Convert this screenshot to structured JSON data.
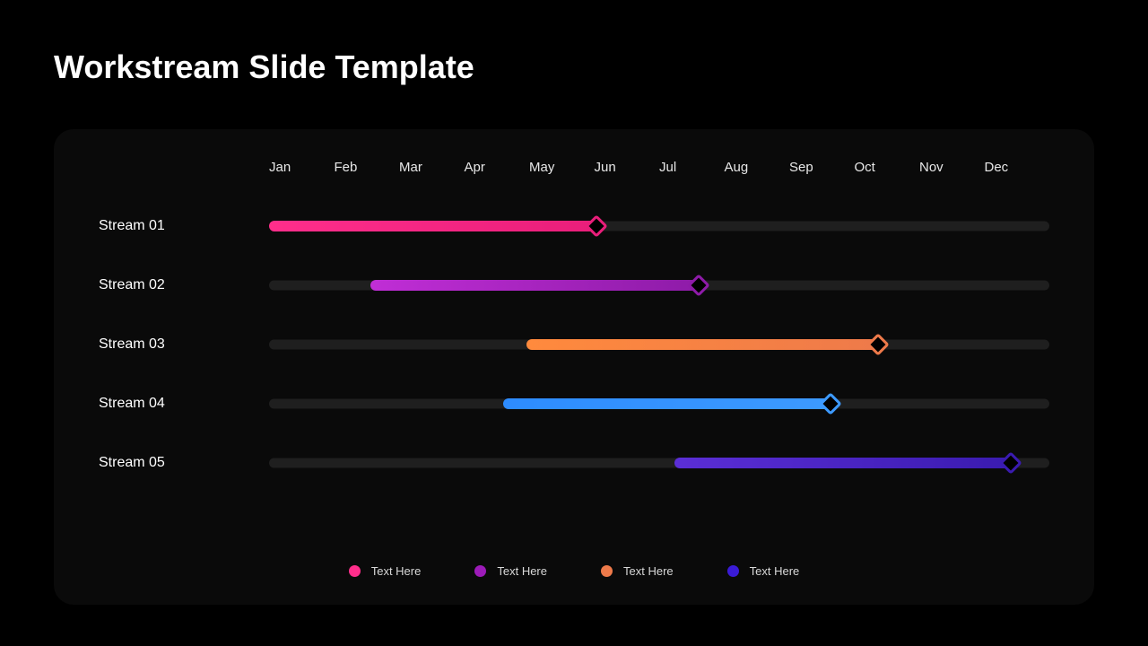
{
  "title": "Workstream Slide Template",
  "background_color": "#000000",
  "panel_background": "#0a0a0a",
  "track_background": "#1f1f1f",
  "text_color": "#ffffff",
  "title_fontsize": 36,
  "label_fontsize": 16,
  "month_fontsize": 15,
  "legend_fontsize": 13,
  "months": [
    "Jan",
    "Feb",
    "Mar",
    "Apr",
    "May",
    "Jun",
    "Jul",
    "Aug",
    "Sep",
    "Oct",
    "Nov",
    "Dec"
  ],
  "streams": [
    {
      "label": "Stream 01",
      "start_pct": 0,
      "end_pct": 42,
      "gradient_from": "#ff2e8b",
      "gradient_to": "#e91e7a",
      "diamond_color": "#e91e7a"
    },
    {
      "label": "Stream 02",
      "start_pct": 13,
      "end_pct": 55,
      "gradient_from": "#c02ed6",
      "gradient_to": "#8e1ba8",
      "diamond_color": "#8e1ba8"
    },
    {
      "label": "Stream 03",
      "start_pct": 33,
      "end_pct": 78,
      "gradient_from": "#ff8a3d",
      "gradient_to": "#ee7a4a",
      "diamond_color": "#ee7a4a"
    },
    {
      "label": "Stream 04",
      "start_pct": 30,
      "end_pct": 72,
      "gradient_from": "#2d8cff",
      "gradient_to": "#3d9aff",
      "diamond_color": "#3d9aff"
    },
    {
      "label": "Stream 05",
      "start_pct": 52,
      "end_pct": 95,
      "gradient_from": "#5b2ed6",
      "gradient_to": "#3a1bb0",
      "diamond_color": "#3a1bb0"
    }
  ],
  "legend": [
    {
      "color": "#ff2e8b",
      "label": "Text Here"
    },
    {
      "color": "#9c1bb8",
      "label": "Text Here"
    },
    {
      "color": "#ee7a4a",
      "label": "Text Here"
    },
    {
      "color": "#3a1bd6",
      "label": "Text Here"
    }
  ]
}
